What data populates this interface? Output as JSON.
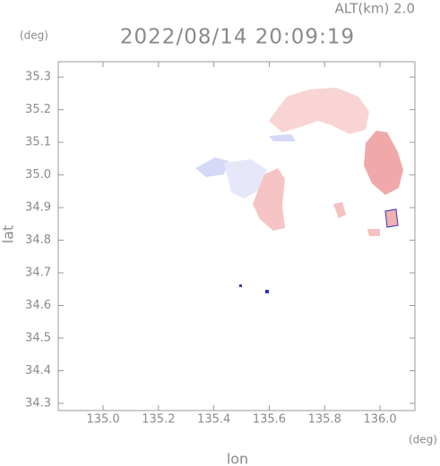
{
  "chart_data": {
    "type": "map",
    "title": "2022/08/14 20:09:19",
    "annotation": "ALT(km) 2.0",
    "x_label": "lon",
    "y_label": "lat",
    "x_unit": "(deg)",
    "y_unit": "(deg)",
    "xlim": [
      134.838,
      136.126
    ],
    "ylim": [
      34.278,
      35.347
    ],
    "xticks": [
      {
        "value": 135,
        "label": "135.0"
      },
      135.2,
      135.4,
      135.6,
      135.8,
      {
        "value": 136,
        "label": "136.0"
      }
    ],
    "yticks": [
      34.3,
      34.4,
      34.5,
      34.6,
      34.7,
      34.8,
      34.9,
      {
        "value": 35,
        "label": "35.0"
      },
      35.1,
      35.2,
      35.3
    ]
  }
}
